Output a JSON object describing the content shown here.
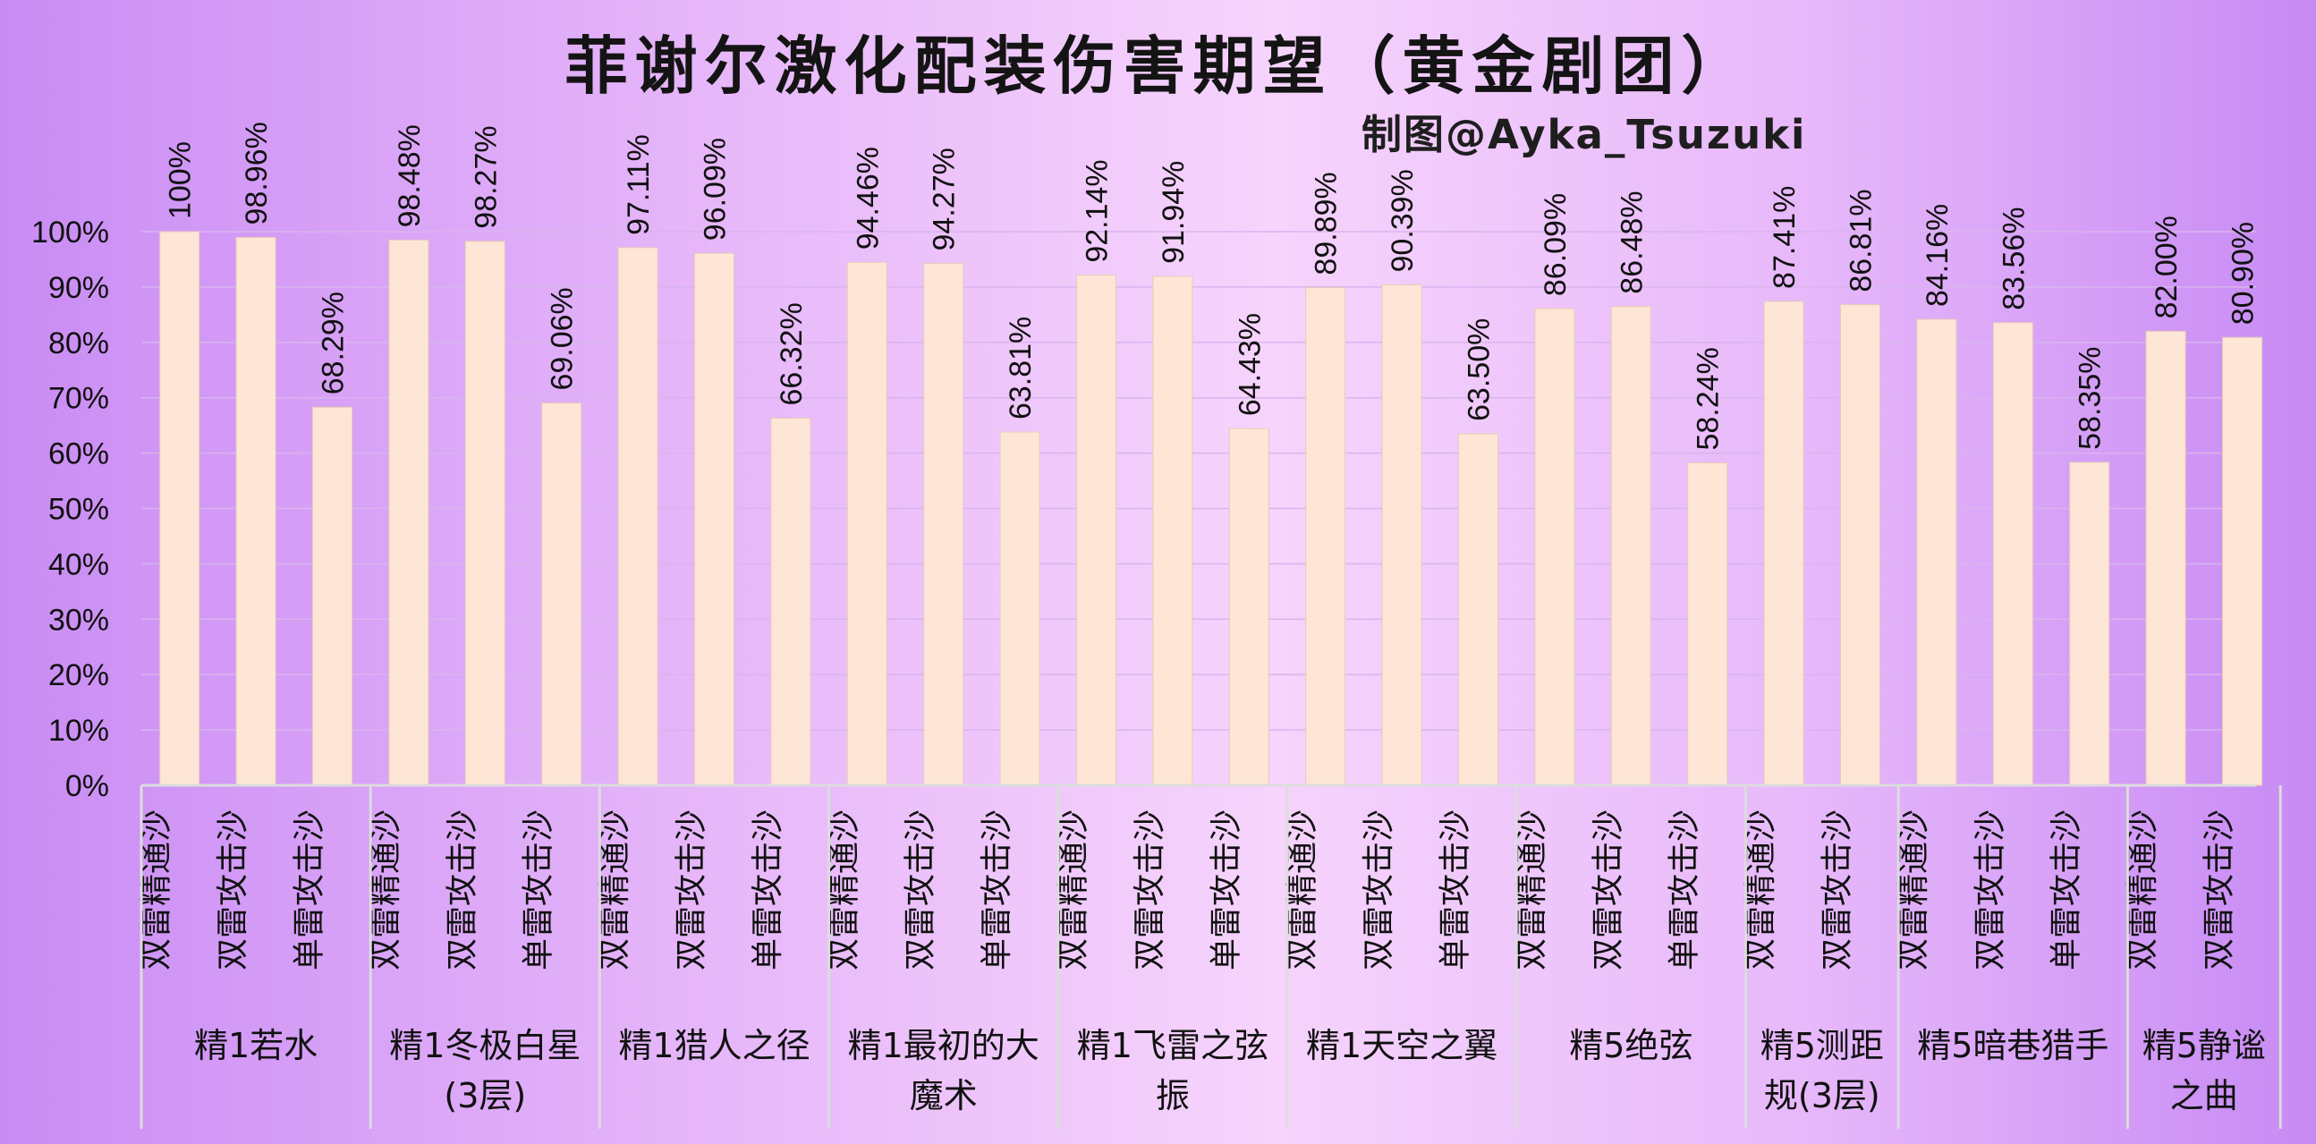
{
  "title": "菲谢尔激化配装伤害期望（黄金剧团）",
  "credit": "制图@Ayka_Tsuzuki",
  "colors": {
    "bar": "#fde6d6",
    "bar_edge": "#e8cbb8",
    "axis": "#dcdcdc",
    "gridline": "#d9b4ee",
    "text": "#111111"
  },
  "chart_data": {
    "type": "bar",
    "ylim": [
      0,
      100
    ],
    "yticks": [
      "0%",
      "10%",
      "20%",
      "30%",
      "40%",
      "50%",
      "60%",
      "70%",
      "80%",
      "90%",
      "100%"
    ],
    "grid": true,
    "legend": "none",
    "groups": [
      {
        "name": "精1若水",
        "lines": [
          "精1若水"
        ],
        "bars": [
          {
            "label": "双雷精通沙",
            "value": 100,
            "value_label": "100%"
          },
          {
            "label": "双雷攻击沙",
            "value": 98.96,
            "value_label": "98.96%"
          },
          {
            "label": "单雷攻击沙",
            "value": 68.29,
            "value_label": "68.29%"
          }
        ]
      },
      {
        "name": "精1冬极白星(3层)",
        "lines": [
          "精1冬极白星",
          "(3层)"
        ],
        "bars": [
          {
            "label": "双雷精通沙",
            "value": 98.48,
            "value_label": "98.48%"
          },
          {
            "label": "双雷攻击沙",
            "value": 98.27,
            "value_label": "98.27%"
          },
          {
            "label": "单雷攻击沙",
            "value": 69.06,
            "value_label": "69.06%"
          }
        ]
      },
      {
        "name": "精1猎人之径",
        "lines": [
          "精1猎人之径"
        ],
        "bars": [
          {
            "label": "双雷精通沙",
            "value": 97.11,
            "value_label": "97.11%"
          },
          {
            "label": "双雷攻击沙",
            "value": 96.09,
            "value_label": "96.09%"
          },
          {
            "label": "单雷攻击沙",
            "value": 66.32,
            "value_label": "66.32%"
          }
        ]
      },
      {
        "name": "精1最初的大魔术",
        "lines": [
          "精1最初的大",
          "魔术"
        ],
        "bars": [
          {
            "label": "双雷精通沙",
            "value": 94.46,
            "value_label": "94.46%"
          },
          {
            "label": "双雷攻击沙",
            "value": 94.27,
            "value_label": "94.27%"
          },
          {
            "label": "单雷攻击沙",
            "value": 63.81,
            "value_label": "63.81%"
          }
        ]
      },
      {
        "name": "精1飞雷之弦振",
        "lines": [
          "精1飞雷之弦",
          "振"
        ],
        "bars": [
          {
            "label": "双雷精通沙",
            "value": 92.14,
            "value_label": "92.14%"
          },
          {
            "label": "双雷攻击沙",
            "value": 91.94,
            "value_label": "91.94%"
          },
          {
            "label": "单雷攻击沙",
            "value": 64.43,
            "value_label": "64.43%"
          }
        ]
      },
      {
        "name": "精1天空之翼",
        "lines": [
          "精1天空之翼"
        ],
        "bars": [
          {
            "label": "双雷精通沙",
            "value": 89.89,
            "value_label": "89.89%"
          },
          {
            "label": "双雷攻击沙",
            "value": 90.39,
            "value_label": "90.39%"
          },
          {
            "label": "单雷攻击沙",
            "value": 63.5,
            "value_label": "63.50%"
          }
        ]
      },
      {
        "name": "精5绝弦",
        "lines": [
          "精5绝弦"
        ],
        "bars": [
          {
            "label": "双雷精通沙",
            "value": 86.09,
            "value_label": "86.09%"
          },
          {
            "label": "双雷攻击沙",
            "value": 86.48,
            "value_label": "86.48%"
          },
          {
            "label": "单雷攻击沙",
            "value": 58.24,
            "value_label": "58.24%"
          }
        ]
      },
      {
        "name": "精5测距规(3层)",
        "lines": [
          "精5测距",
          "规(3层)"
        ],
        "bars": [
          {
            "label": "双雷精通沙",
            "value": 87.41,
            "value_label": "87.41%"
          },
          {
            "label": "双雷攻击沙",
            "value": 86.81,
            "value_label": "86.81%"
          }
        ]
      },
      {
        "name": "精5暗巷猎手",
        "lines": [
          "精5暗巷猎手"
        ],
        "bars": [
          {
            "label": "双雷精通沙",
            "value": 84.16,
            "value_label": "84.16%"
          },
          {
            "label": "双雷攻击沙",
            "value": 83.56,
            "value_label": "83.56%"
          },
          {
            "label": "单雷攻击沙",
            "value": 58.35,
            "value_label": "58.35%"
          }
        ]
      },
      {
        "name": "精5静谧之曲",
        "lines": [
          "精5静谧",
          "之曲"
        ],
        "bars": [
          {
            "label": "双雷精通沙",
            "value": 82.0,
            "value_label": "82.00%"
          },
          {
            "label": "双雷攻击沙",
            "value": 80.9,
            "value_label": "80.90%"
          }
        ]
      }
    ]
  }
}
